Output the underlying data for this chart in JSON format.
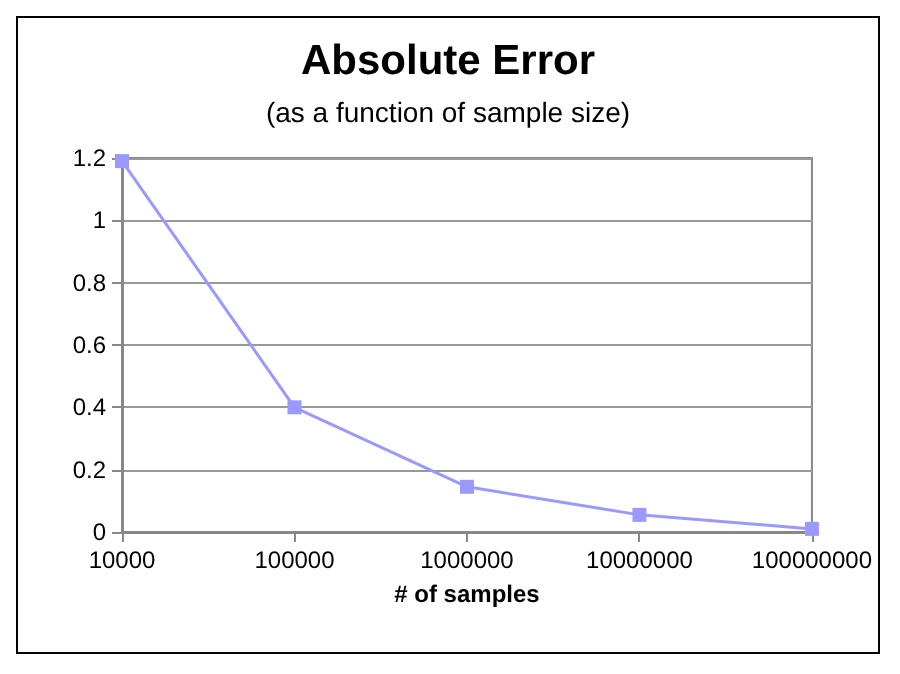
{
  "chart_data": {
    "type": "line",
    "title": "Absolute Error",
    "subtitle": "(as a function of sample size)",
    "xlabel": "# of samples",
    "x": [
      10000,
      100000,
      1000000,
      10000000,
      100000000
    ],
    "series": [
      {
        "color": "#9999ff",
        "values": [
          1.19,
          0.4,
          0.145,
          0.055,
          0.01
        ]
      }
    ],
    "log": "x",
    "xlim": [
      10000,
      100000000
    ],
    "xticks": [
      10000,
      100000,
      1000000,
      10000000,
      100000000
    ],
    "ylim": [
      0,
      1.2
    ],
    "yticks": [
      0,
      0.2,
      0.4,
      0.6,
      0.8,
      1,
      1.2
    ],
    "grid": "y",
    "marker": "square",
    "line_style": "solid"
  }
}
